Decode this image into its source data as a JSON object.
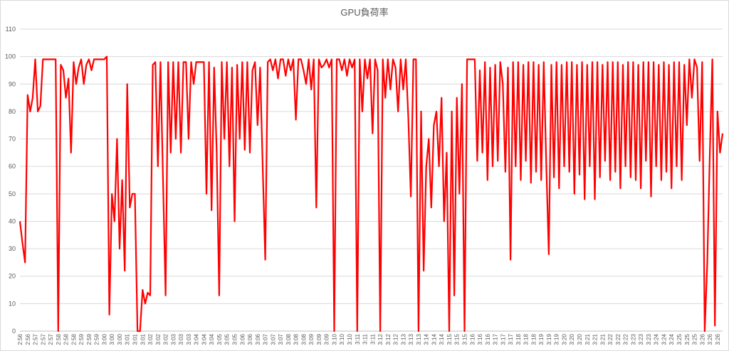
{
  "chart_data": {
    "type": "line",
    "title": "GPU負荷率",
    "color": "#ff0000",
    "grid": true,
    "ylim": [
      0,
      110
    ],
    "yticks": [
      0,
      10,
      20,
      30,
      40,
      50,
      60,
      70,
      80,
      90,
      100,
      110
    ],
    "categories": [
      "2:56",
      null,
      null,
      "2:56",
      null,
      null,
      "2:57",
      null,
      null,
      "2:57",
      null,
      null,
      "2:57",
      null,
      null,
      "2:58",
      null,
      null,
      "2:58",
      null,
      null,
      "2:58",
      null,
      null,
      "2:59",
      null,
      null,
      "2:59",
      null,
      null,
      "2:59",
      null,
      null,
      "3:00",
      null,
      null,
      "3:00",
      null,
      null,
      "3:00",
      null,
      null,
      "3:01",
      null,
      null,
      "3:01",
      null,
      null,
      "3:01",
      null,
      null,
      "3:02",
      null,
      null,
      "3:02",
      null,
      null,
      "3:02",
      null,
      null,
      "3:03",
      null,
      null,
      "3:03",
      null,
      null,
      "3:03",
      null,
      null,
      "3:04",
      null,
      null,
      "3:04",
      null,
      null,
      "3:04",
      null,
      null,
      "3:05",
      null,
      null,
      "3:05",
      null,
      null,
      "3:05",
      null,
      null,
      "3:06",
      null,
      null,
      "3:06",
      null,
      null,
      "3:06",
      null,
      null,
      "3:07",
      null,
      null,
      "3:07",
      null,
      null,
      "3:07",
      null,
      null,
      "3:08",
      null,
      null,
      "3:08",
      null,
      null,
      "3:08",
      null,
      null,
      "3:09",
      null,
      null,
      "3:09",
      null,
      null,
      "3:09",
      null,
      null,
      "3:10",
      null,
      null,
      "3:10",
      null,
      null,
      "3:10",
      null,
      null,
      "3:11",
      null,
      null,
      "3:11",
      null,
      null,
      "3:11",
      null,
      null,
      "3:12",
      null,
      null,
      "3:12",
      null,
      null,
      "3:12",
      null,
      null,
      "3:13",
      null,
      null,
      "3:13",
      null,
      null,
      "3:13",
      null,
      null,
      "3:14",
      null,
      null,
      "3:14",
      null,
      null,
      "3:14",
      null,
      null,
      "3:15",
      null,
      null,
      "3:15",
      null,
      null,
      "3:15",
      null,
      null,
      "3:16",
      null,
      null,
      "3:16",
      null,
      null,
      "3:16",
      null,
      null,
      "3:17",
      null,
      null,
      "3:17",
      null,
      null,
      "3:17",
      null,
      null,
      "3:18",
      null,
      null,
      "3:18",
      null,
      null,
      "3:18",
      null,
      null,
      "3:19",
      null,
      null,
      "3:19",
      null,
      null,
      "3:19",
      null,
      null,
      "3:20",
      null,
      null,
      "3:20",
      null,
      null,
      "3:20",
      null,
      null,
      "3:21",
      null,
      null,
      "3:21",
      null,
      null,
      "3:21",
      null,
      null,
      "3:22",
      null,
      null,
      "3:22",
      null,
      null,
      "3:22",
      null,
      null,
      "3:23",
      null,
      null,
      "3:23",
      null,
      null,
      "3:23",
      null,
      null,
      "3:24",
      null,
      null,
      "3:24",
      null,
      null,
      "3:24",
      null,
      null,
      "3:25",
      null,
      null,
      "3:25",
      null,
      null,
      "3:25",
      null,
      null,
      "3:26",
      null,
      null,
      "3:26",
      null,
      null,
      "3:26",
      null,
      null
    ],
    "values": [
      40,
      32,
      25,
      86,
      80,
      85,
      99,
      80,
      82,
      99,
      99,
      99,
      99,
      99,
      99,
      0,
      97,
      95,
      85,
      92,
      65,
      98,
      90,
      96,
      99,
      90,
      97,
      99,
      95,
      99,
      99,
      99,
      99,
      99,
      100,
      6,
      50,
      40,
      70,
      30,
      55,
      22,
      90,
      45,
      50,
      50,
      0,
      0,
      15,
      10,
      14,
      13,
      97,
      98,
      60,
      98,
      55,
      13,
      98,
      65,
      98,
      70,
      98,
      65,
      98,
      98,
      70,
      98,
      90,
      98,
      98,
      98,
      98,
      50,
      98,
      44,
      96,
      65,
      13,
      98,
      70,
      98,
      60,
      96,
      40,
      97,
      70,
      98,
      66,
      98,
      65,
      95,
      98,
      75,
      96,
      60,
      26,
      98,
      99,
      95,
      99,
      92,
      99,
      99,
      93,
      99,
      95,
      99,
      77,
      99,
      99,
      95,
      90,
      99,
      88,
      99,
      45,
      99,
      96,
      97,
      99,
      96,
      99,
      0,
      99,
      99,
      95,
      99,
      93,
      99,
      96,
      99,
      0,
      99,
      80,
      99,
      92,
      99,
      72,
      99,
      95,
      0,
      99,
      85,
      99,
      88,
      99,
      96,
      80,
      99,
      88,
      99,
      78,
      49,
      99,
      99,
      0,
      80,
      22,
      60,
      70,
      45,
      75,
      80,
      60,
      85,
      40,
      65,
      0,
      80,
      13,
      85,
      50,
      90,
      0,
      99,
      99,
      99,
      99,
      62,
      95,
      65,
      98,
      55,
      96,
      60,
      97,
      62,
      98,
      90,
      58,
      96,
      26,
      98,
      60,
      98,
      55,
      97,
      62,
      98,
      54,
      98,
      58,
      97,
      55,
      98,
      60,
      28,
      97,
      56,
      98,
      52,
      97,
      60,
      98,
      58,
      98,
      50,
      97,
      57,
      98,
      48,
      97,
      60,
      98,
      48,
      98,
      56,
      97,
      62,
      98,
      55,
      98,
      58,
      98,
      52,
      97,
      60,
      98,
      56,
      98,
      55,
      97,
      52,
      98,
      62,
      98,
      49,
      98,
      60,
      97,
      55,
      98,
      58,
      97,
      52,
      98,
      60,
      98,
      55,
      97,
      75,
      99,
      85,
      99,
      96,
      62,
      98,
      0,
      25,
      65,
      99,
      2,
      80,
      65,
      72
    ]
  }
}
